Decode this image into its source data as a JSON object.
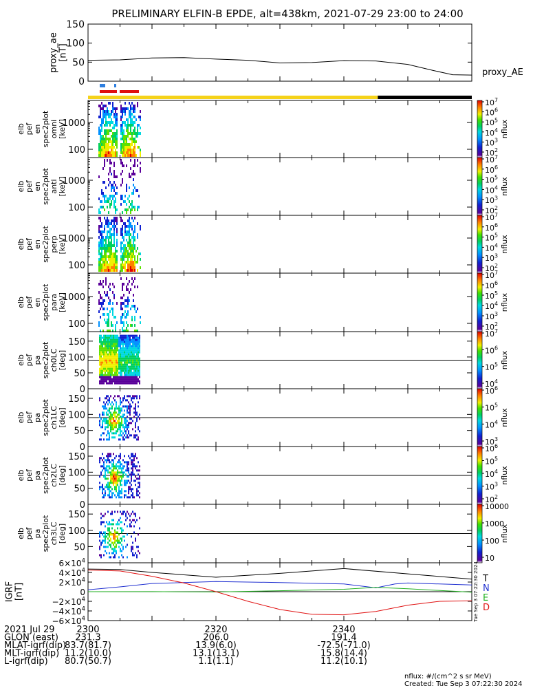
{
  "title": "PRELIMINARY ELFIN-B EPDE, alt=438km, 2021-07-29 23:00 to 24:00",
  "colors": {
    "state_bar_day": "#f5d21a",
    "state_bar_night": "#000000",
    "phase_blue": "#2e7fe0",
    "phase_red": "#e01010",
    "ae_line": "#000000",
    "grf_t": "#000000",
    "grf_n": "#1f2fd0",
    "grf_e": "#20b020",
    "grf_d": "#e01010"
  },
  "chart_data": [
    {
      "type": "line",
      "name": "proxy_ae",
      "ylabel_lines": [
        "proxy_ae",
        "[nT]"
      ],
      "ylim": [
        0,
        150
      ],
      "yticks": [
        "0",
        "50",
        "100",
        "150"
      ],
      "xlim": [
        0,
        60
      ],
      "series": [
        {
          "name": "proxy_AE",
          "x": [
            0,
            5,
            10,
            15,
            20,
            25,
            30,
            35,
            40,
            45,
            50,
            54,
            57,
            60
          ],
          "y": [
            55,
            56,
            61,
            62,
            58,
            55,
            48,
            49,
            54,
            53,
            44,
            28,
            17,
            16
          ]
        }
      ]
    },
    {
      "type": "heatmap",
      "name": "elb_pef_en_spec2plot_omni",
      "ylabel_lines": [
        "elb",
        "pef",
        "en",
        "spec2plot",
        "omni",
        "[keV]"
      ],
      "yscale": "log",
      "yticks": [
        "100",
        "1000"
      ],
      "ztick_labels": [
        "10^2",
        "10^3",
        "10^4",
        "10^5",
        "10^6",
        "10^7"
      ],
      "zlabel": "nflux",
      "xrange_data": [
        1.0,
        4.7
      ]
    },
    {
      "type": "heatmap",
      "name": "elb_pef_en_spec2plot_anti",
      "ylabel_lines": [
        "elb",
        "pef",
        "en",
        "spec2plot",
        "anti",
        "[keV]"
      ],
      "yscale": "log",
      "yticks": [
        "100",
        "1000"
      ],
      "ztick_labels": [
        "10^2",
        "10^3",
        "10^4",
        "10^5",
        "10^6",
        "10^7"
      ],
      "zlabel": "nflux",
      "xrange_data": [
        1.0,
        4.7
      ]
    },
    {
      "type": "heatmap",
      "name": "elb_pef_en_spec2plot_perp",
      "ylabel_lines": [
        "elb",
        "pef",
        "en",
        "spec2plot",
        "perp",
        "[keV]"
      ],
      "yscale": "log",
      "yticks": [
        "100",
        "1000"
      ],
      "ztick_labels": [
        "10^2",
        "10^3",
        "10^4",
        "10^5",
        "10^6",
        "10^7"
      ],
      "zlabel": "nflux",
      "xrange_data": [
        1.0,
        4.7
      ]
    },
    {
      "type": "heatmap",
      "name": "elb_pef_en_spec2plot_para",
      "ylabel_lines": [
        "elb",
        "pef",
        "en",
        "spec2plot",
        "para",
        "[keV]"
      ],
      "yscale": "log",
      "yticks": [
        "100",
        "1000"
      ],
      "ztick_labels": [
        "10^2",
        "10^3",
        "10^4",
        "10^5",
        "10^6",
        "10^7"
      ],
      "zlabel": "nflux",
      "xrange_data": [
        1.0,
        4.7
      ]
    },
    {
      "type": "heatmap",
      "name": "elb_pef_pa_spec2plot_ch0LC",
      "ylabel_lines": [
        "elb",
        "pef",
        "pa",
        "spec2plot",
        "ch0LC",
        "[deg]"
      ],
      "ylim": [
        0,
        180
      ],
      "yticks": [
        "0",
        "50",
        "100",
        "150"
      ],
      "ztick_labels": [
        "10^4",
        "10^5",
        "10^6",
        "10^7"
      ],
      "zlabel": "nflux",
      "hline": 90
    },
    {
      "type": "heatmap",
      "name": "elb_pef_pa_spec2plot_ch1LC",
      "ylabel_lines": [
        "elb",
        "pef",
        "pa",
        "spec2plot",
        "ch1LC",
        "[deg]"
      ],
      "ylim": [
        0,
        180
      ],
      "yticks": [
        "0",
        "50",
        "100",
        "150"
      ],
      "ztick_labels": [
        "10^3",
        "10^4",
        "10^5",
        "10^6"
      ],
      "zlabel": "nflux",
      "hline": 90
    },
    {
      "type": "heatmap",
      "name": "elb_pef_pa_spec2plot_ch2LC",
      "ylabel_lines": [
        "elb",
        "pef",
        "pa",
        "spec2plot",
        "ch2LC",
        "[deg]"
      ],
      "ylim": [
        0,
        180
      ],
      "yticks": [
        "0",
        "50",
        "100",
        "150"
      ],
      "ztick_labels": [
        "10^2",
        "10^3",
        "10^4",
        "10^5",
        "10^6"
      ],
      "zlabel": "nflux",
      "hline": 90
    },
    {
      "type": "heatmap",
      "name": "elb_pef_pa_spec2plot_ch3LC",
      "ylabel_lines": [
        "elb",
        "pef",
        "pa",
        "spec2plot",
        "ch3LC",
        "[deg]"
      ],
      "ylim": [
        0,
        180
      ],
      "yticks": [
        "50",
        "100",
        "150"
      ],
      "ztick_labels": [
        "10",
        "100",
        "1000",
        "10000"
      ],
      "zlabel": "nflux",
      "hline": 90
    },
    {
      "type": "line",
      "name": "IGRF",
      "ylabel_lines": [
        "IGRF",
        "[nT]"
      ],
      "ylim": [
        -60000,
        60000
      ],
      "ytick_labels": [
        "6×10^4",
        "4×10^4",
        "2×10^4",
        "0",
        "−2×10^4",
        "−4×10^4",
        "−6×10^4"
      ],
      "legend": [
        "T",
        "N",
        "E",
        "D"
      ],
      "series": [
        {
          "name": "T",
          "x": [
            0,
            5,
            10,
            20,
            30,
            40,
            50,
            60
          ],
          "y": [
            47000,
            46000,
            40000,
            30000,
            38000,
            48000,
            37000,
            26000
          ]
        },
        {
          "name": "N",
          "x": [
            0,
            5,
            10,
            20,
            30,
            40,
            45,
            48,
            50,
            60
          ],
          "y": [
            4000,
            10000,
            17000,
            21000,
            19000,
            16000,
            8000,
            16000,
            18000,
            14000
          ]
        },
        {
          "name": "E",
          "x": [
            0,
            10,
            20,
            30,
            40,
            45,
            50,
            60
          ],
          "y": [
            0,
            100,
            -500,
            2000,
            5000,
            9000,
            6000,
            -1000
          ]
        },
        {
          "name": "D",
          "x": [
            0,
            5,
            10,
            15,
            20,
            25,
            30,
            35,
            40,
            45,
            50,
            55,
            60
          ],
          "y": [
            45000,
            43000,
            32000,
            18000,
            0,
            -20000,
            -37000,
            -47000,
            -48000,
            -41000,
            -28000,
            -20000,
            -19000
          ]
        }
      ]
    }
  ],
  "xaxis": {
    "ticks": [
      {
        "x": 0,
        "label": "2300"
      },
      {
        "x": 20,
        "label": "2320"
      },
      {
        "x": 40,
        "label": "2340"
      }
    ]
  },
  "footer_rows": [
    {
      "label": "2021 Jul 29",
      "v0": "2300",
      "v1": "",
      "v2": ""
    },
    {
      "label": "GLON (east)",
      "v0": "231.3",
      "v1": "206.0",
      "v2": "191.4"
    },
    {
      "label": "MLAT-igrf(dip)",
      "v0": "83.7(81.7)",
      "v1": "13.9(6.0)",
      "v2": "-72.5(-71.0)"
    },
    {
      "label": "MLT-igrf(dip)",
      "v0": "11.2(10.0)",
      "v1": "13.1(13.1)",
      "v2": "15.8(14.4)"
    },
    {
      "label": "L-igrf(dip)",
      "v0": "80.7(50.7)",
      "v1": "1.1(1.1)",
      "v2": "11.2(10.1)"
    }
  ],
  "footnote_units": "nflux: #/(cm^2 s sr MeV)",
  "created": "Created: Tue Sep  3 07:22:30 2024",
  "side_stamp": "Tue Sep  3 07:22:30 2024",
  "proxy_label": "proxy_AE"
}
